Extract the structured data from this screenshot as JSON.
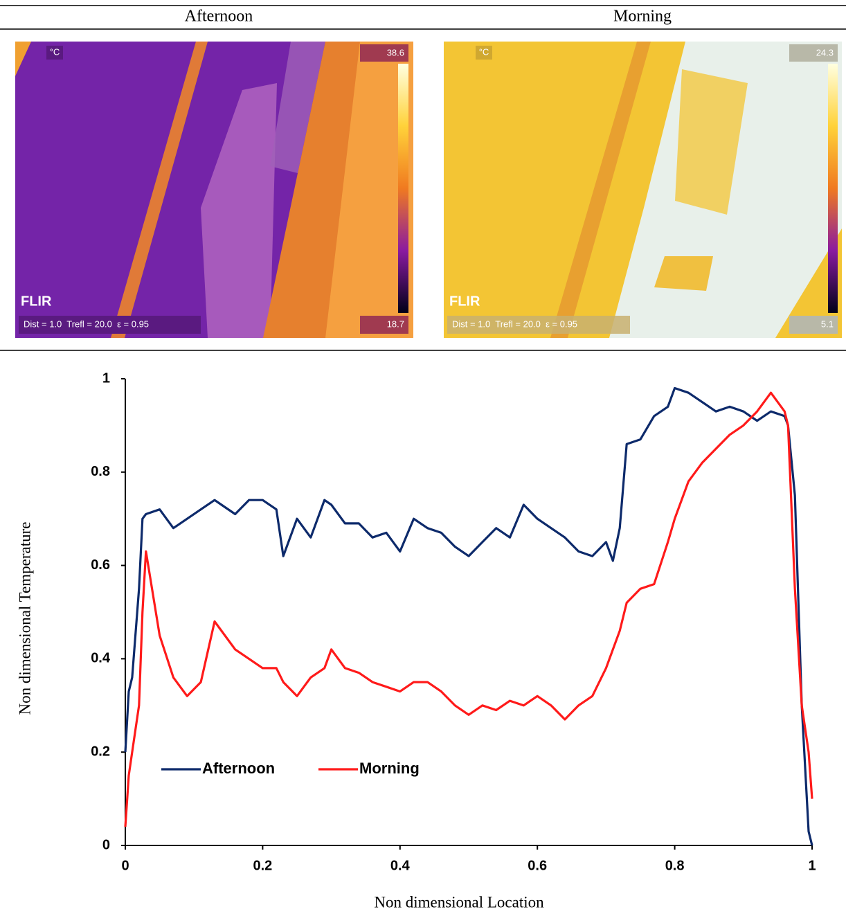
{
  "figure": {
    "headers": [
      "Afternoon",
      "Morning"
    ],
    "images": [
      {
        "unit": "°C",
        "max": "38.6",
        "min": "18.7",
        "logo": "FLIR",
        "params": "Dist = 1.0  Trefl = 20.0  ε = 0.95"
      },
      {
        "unit": "°C",
        "max": "24.3",
        "min": "5.1",
        "logo": "FLIR",
        "params": "Dist = 1.0  Trefl = 20.0  ε = 0.95"
      }
    ]
  },
  "chart_data": {
    "type": "line",
    "x_label": "Non dimensional Location",
    "y_label": "Non dimensional Temperature",
    "x": [
      0,
      0.005,
      0.01,
      0.02,
      0.025,
      0.03,
      0.05,
      0.07,
      0.09,
      0.11,
      0.13,
      0.14,
      0.16,
      0.18,
      0.2,
      0.22,
      0.23,
      0.25,
      0.27,
      0.29,
      0.3,
      0.32,
      0.34,
      0.36,
      0.38,
      0.4,
      0.42,
      0.44,
      0.46,
      0.48,
      0.5,
      0.52,
      0.54,
      0.56,
      0.58,
      0.6,
      0.62,
      0.64,
      0.66,
      0.68,
      0.7,
      0.71,
      0.72,
      0.73,
      0.75,
      0.77,
      0.79,
      0.8,
      0.82,
      0.84,
      0.86,
      0.88,
      0.9,
      0.92,
      0.94,
      0.96,
      0.965,
      0.975,
      0.985,
      0.995,
      1.0
    ],
    "series": [
      {
        "name": "Afternoon",
        "color": "#0d2a6b",
        "values": [
          0.2,
          0.33,
          0.36,
          0.55,
          0.7,
          0.71,
          0.72,
          0.68,
          0.7,
          0.72,
          0.74,
          0.73,
          0.71,
          0.74,
          0.74,
          0.72,
          0.62,
          0.7,
          0.66,
          0.74,
          0.73,
          0.69,
          0.69,
          0.66,
          0.67,
          0.63,
          0.7,
          0.68,
          0.67,
          0.64,
          0.62,
          0.65,
          0.68,
          0.66,
          0.73,
          0.7,
          0.68,
          0.66,
          0.63,
          0.62,
          0.65,
          0.61,
          0.68,
          0.86,
          0.87,
          0.92,
          0.94,
          0.98,
          0.97,
          0.95,
          0.93,
          0.94,
          0.93,
          0.91,
          0.93,
          0.92,
          0.9,
          0.75,
          0.3,
          0.03,
          0.0
        ]
      },
      {
        "name": "Morning",
        "color": "#ff1a1a",
        "values": [
          0.04,
          0.15,
          0.2,
          0.3,
          0.5,
          0.63,
          0.45,
          0.36,
          0.32,
          0.35,
          0.48,
          0.46,
          0.42,
          0.4,
          0.38,
          0.38,
          0.35,
          0.32,
          0.36,
          0.38,
          0.42,
          0.38,
          0.37,
          0.35,
          0.34,
          0.33,
          0.35,
          0.35,
          0.33,
          0.3,
          0.28,
          0.3,
          0.29,
          0.31,
          0.3,
          0.32,
          0.3,
          0.27,
          0.3,
          0.32,
          0.38,
          0.42,
          0.46,
          0.52,
          0.55,
          0.56,
          0.65,
          0.7,
          0.78,
          0.82,
          0.85,
          0.88,
          0.9,
          0.93,
          0.97,
          0.93,
          0.9,
          0.55,
          0.3,
          0.2,
          0.1
        ]
      }
    ],
    "xlim": [
      0,
      1
    ],
    "xticks": [
      0,
      0.2,
      0.4,
      0.6,
      0.8,
      1
    ],
    "ylim": [
      0,
      1
    ],
    "yticks": [
      0,
      0.2,
      0.4,
      0.6,
      0.8,
      1
    ],
    "legend": "lower left"
  }
}
